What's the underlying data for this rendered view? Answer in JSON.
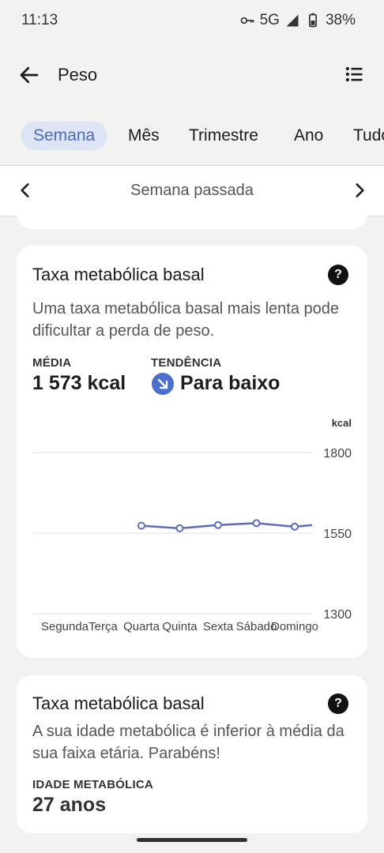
{
  "status": {
    "time": "11:13",
    "network": "5G",
    "battery": "38%"
  },
  "appbar": {
    "title": "Peso"
  },
  "tabs": [
    "Semana",
    "Mês",
    "Trimestre",
    "Ano",
    "Tudo"
  ],
  "range": {
    "label": "Semana passada"
  },
  "card1": {
    "title": "Taxa metabólica basal",
    "help": "?",
    "description": "Uma taxa metabólica basal mais lenta pode dificultar a perda de peso.",
    "average_label": "MÉDIA",
    "average_value": "1 573 kcal",
    "trend_label": "TENDÊNCIA",
    "trend_value": "Para baixo",
    "unit": "kcal"
  },
  "card2": {
    "title": "Taxa metabólica basal",
    "help": "?",
    "description": "A sua idade metabólica é inferior à média da sua faixa etária. Parabéns!",
    "age_label": "IDADE METABÓLICA",
    "age_value": "27 anos"
  },
  "chart_data": {
    "type": "line",
    "categories": [
      "Segunda",
      "Terça",
      "Quarta",
      "Quinta",
      "Sexta",
      "Sábado",
      "Domingo"
    ],
    "series": [
      {
        "values": [
          null,
          null,
          1573,
          1565,
          1575,
          1581,
          1570
        ]
      }
    ],
    "ylabel": "kcal",
    "yticks": [
      1300,
      1550,
      1800
    ],
    "ylim": [
      1300,
      1800
    ],
    "grid": true,
    "colors": {
      "line": "#5b6fb8"
    }
  }
}
